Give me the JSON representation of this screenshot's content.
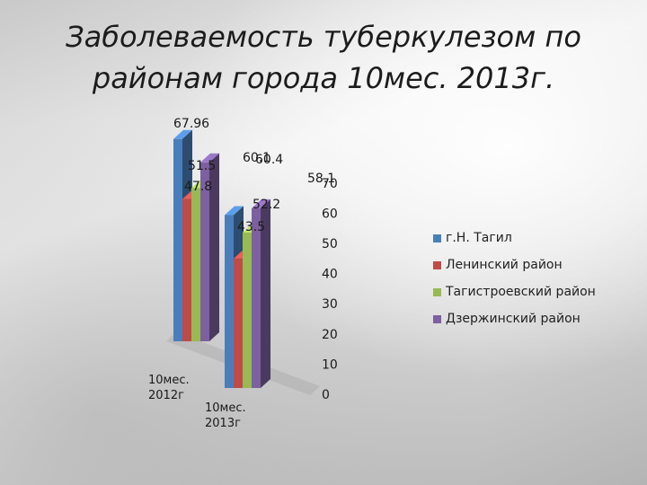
{
  "title_lines": [
    "Заболеваемость туберкулезом по",
    "районам города 10мес. 2013г."
  ],
  "chart_data": {
    "type": "bar",
    "title": "Заболеваемость туберкулезом по районам города 10мес. 2013г.",
    "categories": [
      "10мес. 2012г",
      "10мес. 2013г"
    ],
    "series": [
      {
        "name": "г.Н. Тагил",
        "color": "#4a7ebb",
        "values": [
          67.96,
          58.1
        ]
      },
      {
        "name": "Ленинский район",
        "color": "#be4b48",
        "values": [
          47.8,
          43.5
        ]
      },
      {
        "name": "Тагистроевский район",
        "color": "#98b954",
        "values": [
          51.5,
          52.2
        ]
      },
      {
        "name": "Дзержинский район",
        "color": "#7d60a0",
        "values": [
          60.1,
          60.4
        ]
      }
    ],
    "yticks": [
      "0",
      "10",
      "20",
      "30",
      "40",
      "50",
      "60",
      "70"
    ],
    "ylim": [
      0,
      70
    ],
    "legend_position": "right",
    "grid": false
  }
}
